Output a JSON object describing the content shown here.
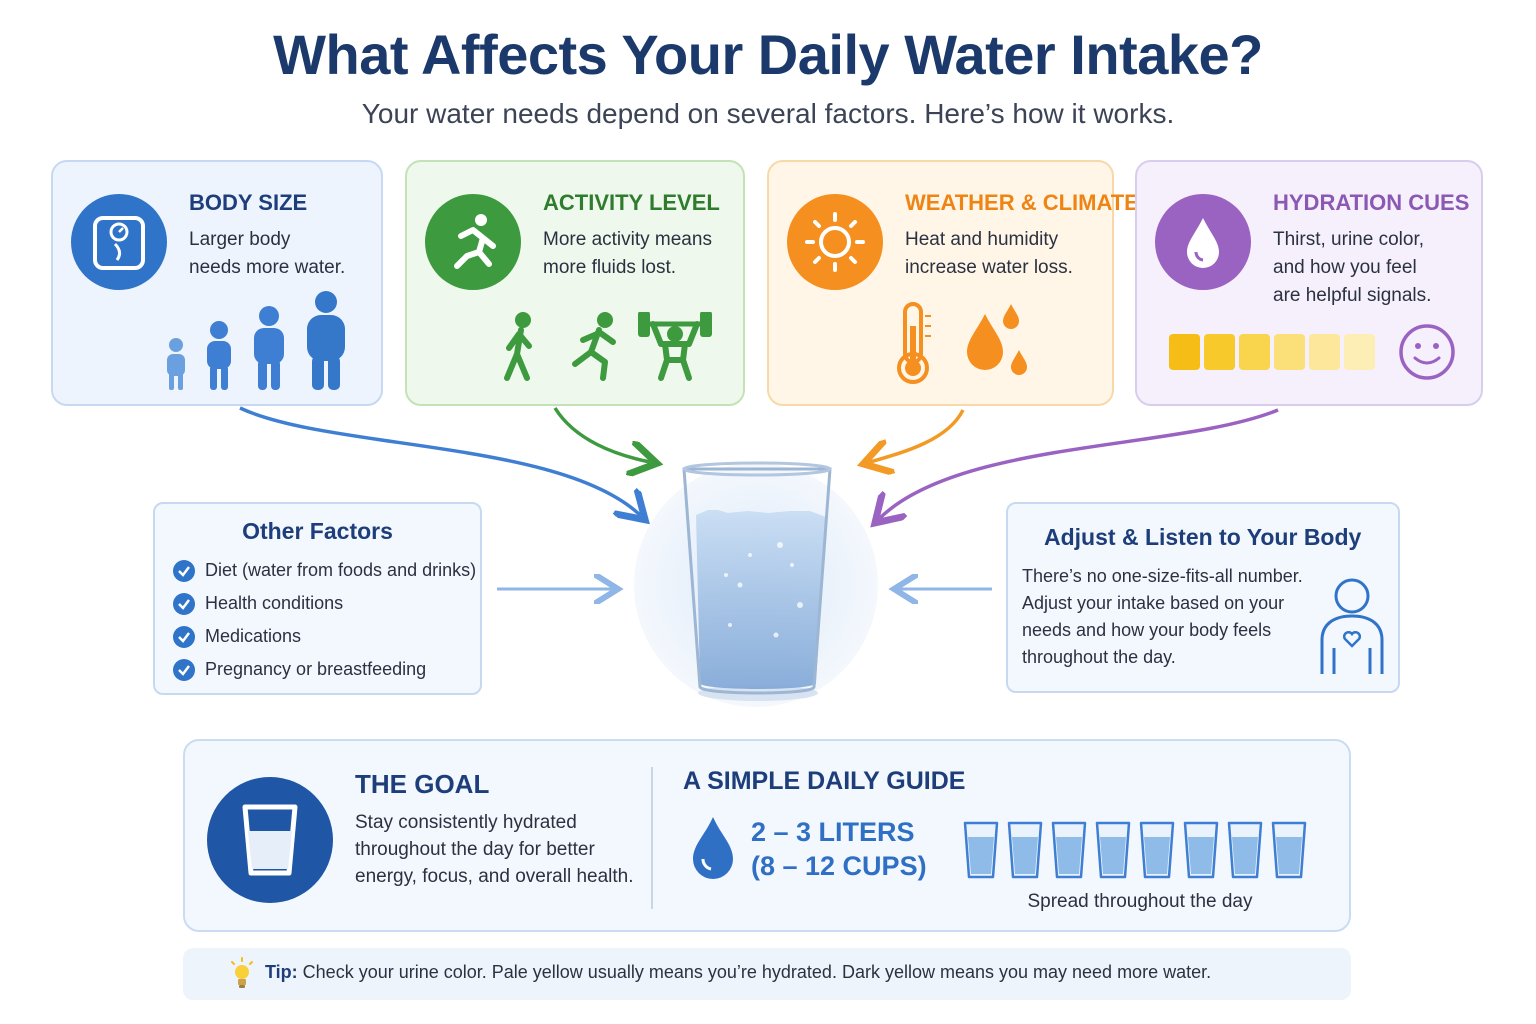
{
  "header": {
    "title": "What Affects Your Daily Water Intake?",
    "subtitle": "Your water needs depend on several factors. Here’s how it works."
  },
  "factors": [
    {
      "title": "BODY SIZE",
      "text": "Larger body\nneeds more water.",
      "icon": "scale-icon",
      "color": "#2f74c8"
    },
    {
      "title": "ACTIVITY LEVEL",
      "text": "More activity means\nmore fluids lost.",
      "icon": "runner-icon",
      "color": "#3e9a3e"
    },
    {
      "title": "WEATHER & CLIMATE",
      "text": "Heat and humidity\nincrease water loss.",
      "icon": "sun-icon",
      "color": "#f58f1f"
    },
    {
      "title": "HYDRATION CUES",
      "text": "Thirst, urine color,\nand how you feel\nare helpful signals.",
      "icon": "water-drop-icon",
      "color": "#9a62c1"
    }
  ],
  "urine_colors": [
    "#f5bd16",
    "#f7c92a",
    "#f9d54e",
    "#fbe07a",
    "#fce79a",
    "#fdeeb6"
  ],
  "other_factors": {
    "title": "Other Factors",
    "items": [
      "Diet (water from foods and drinks)",
      "Health conditions",
      "Medications",
      "Pregnancy or breastfeeding"
    ]
  },
  "adjust": {
    "title": "Adjust & Listen to Your Body",
    "text": "There’s no one-size-fits-all number.\nAdjust your intake based on your\nneeds and how your body feels\nthroughout the day."
  },
  "goal": {
    "title": "THE GOAL",
    "text": "Stay consistently hydrated\nthroughout the day for better\nenergy, focus, and overall health."
  },
  "guide": {
    "title": "A SIMPLE DAILY GUIDE",
    "amount": "2 – 3 LITERS\n(8 – 12 CUPS)",
    "cups_shown": 8,
    "caption": "Spread throughout the day"
  },
  "tip": {
    "label": "Tip:",
    "text": " Check your urine color. Pale yellow usually means you’re hydrated. Dark yellow means you may need more water."
  }
}
